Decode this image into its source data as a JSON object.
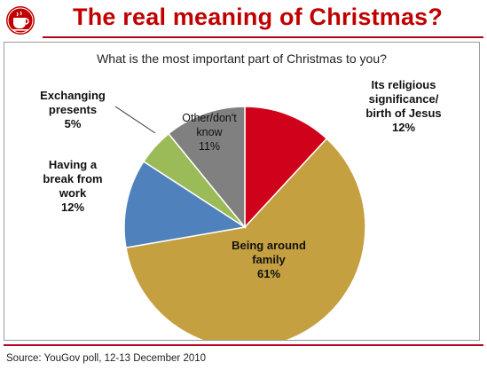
{
  "header": {
    "title": "The real meaning of Christmas?",
    "logo_icon": "coffee-cup-icon",
    "accent_color": "#c00000"
  },
  "chart_data": {
    "type": "pie",
    "title": "What is the most important part of Christmas to you?",
    "slices": [
      {
        "label": "Its religious significance/ birth of Jesus",
        "value": 12,
        "display": "12%",
        "color": "#d0021b"
      },
      {
        "label": "Being around family",
        "value": 61,
        "display": "61%",
        "color": "#c4a040"
      },
      {
        "label": "Having a break from work",
        "value": 12,
        "display": "12%",
        "color": "#4f81bd"
      },
      {
        "label": "Exchanging presents",
        "value": 5,
        "display": "5%",
        "color": "#9bbb59"
      },
      {
        "label": "Other/don't know",
        "value": 11,
        "display": "11%",
        "color": "#808080"
      }
    ],
    "legend": "none"
  },
  "labels": {
    "religious": "Its religious\nsignificance/\nbirth of Jesus\n12%",
    "family": "Being around\nfamily\n61%",
    "break": "Having a\nbreak from\nwork\n12%",
    "presents": "Exchanging\npresents\n5%",
    "other": "Other/don't\nknow\n11%"
  },
  "footer": {
    "source": "Source: YouGov poll, 12-13 December 2010"
  }
}
